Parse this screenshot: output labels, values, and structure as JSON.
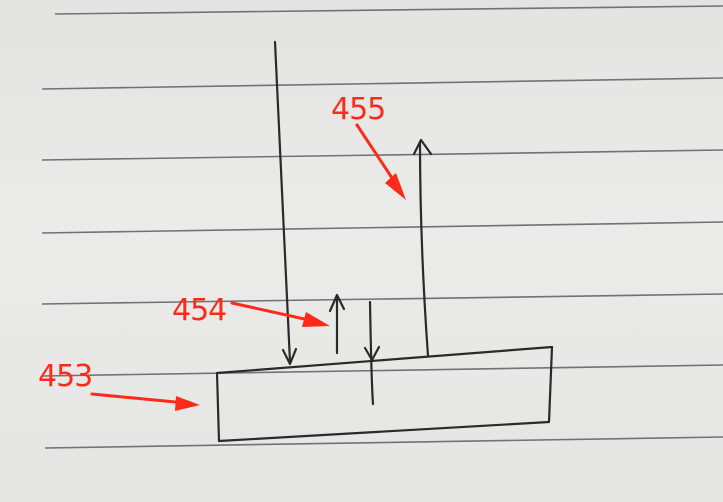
{
  "labels": {
    "ref_455": "455",
    "ref_454": "454",
    "ref_453": "453"
  },
  "colors": {
    "paper": "#e8e8e6",
    "ruled_line": "#6f7278",
    "ink": "#2a2a2a",
    "annotation": "#ff2a1a"
  }
}
